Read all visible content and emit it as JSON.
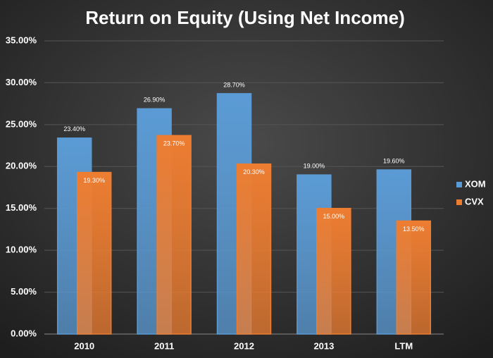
{
  "chart_data": {
    "type": "bar",
    "title": "Return on Equity (Using Net Income)",
    "categories": [
      "2010",
      "2011",
      "2012",
      "2013",
      "LTM"
    ],
    "series": [
      {
        "name": "XOM",
        "color": "#5b9bd5",
        "values": [
          23.4,
          26.9,
          28.7,
          19.0,
          19.6
        ],
        "value_labels": [
          "23.40%",
          "26.90%",
          "28.70%",
          "19.00%",
          "19.60%"
        ]
      },
      {
        "name": "CVX",
        "color": "#ed7d31",
        "values": [
          19.3,
          23.7,
          20.3,
          15.0,
          13.5
        ],
        "value_labels": [
          "19.30%",
          "23.70%",
          "20.30%",
          "15.00%",
          "13.50%"
        ]
      }
    ],
    "ylim": [
      0,
      35
    ],
    "yticks": [
      {
        "value": 0,
        "label": "0.00%"
      },
      {
        "value": 5,
        "label": "5.00%"
      },
      {
        "value": 10,
        "label": "10.00%"
      },
      {
        "value": 15,
        "label": "15.00%"
      },
      {
        "value": 20,
        "label": "20.00%"
      },
      {
        "value": 25,
        "label": "25.00%"
      },
      {
        "value": 30,
        "label": "30.00%"
      },
      {
        "value": 35,
        "label": "35.00%"
      }
    ],
    "grid": true,
    "legend": "right"
  }
}
